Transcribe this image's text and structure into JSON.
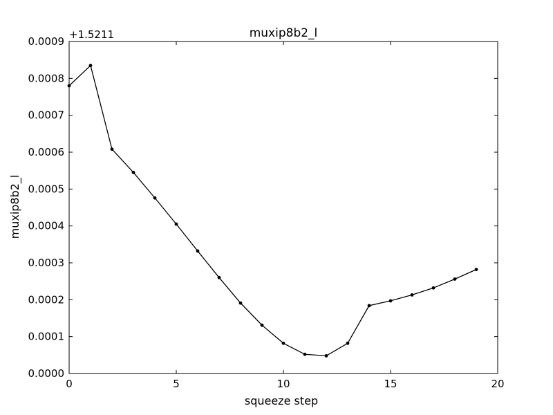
{
  "chart_data": {
    "type": "line",
    "title": "muxip8b2_l",
    "xlabel": "squeeze step",
    "ylabel": "muxip8b2_l",
    "offset_label": "+1.5211",
    "xlim": [
      0,
      20
    ],
    "ylim": [
      0.0,
      0.0009
    ],
    "x_ticks": [
      0,
      5,
      10,
      15,
      20
    ],
    "x_tick_labels": [
      "0",
      "5",
      "10",
      "15",
      "20"
    ],
    "y_ticks": [
      0.0,
      0.0001,
      0.0002,
      0.0003,
      0.0004,
      0.0005,
      0.0006,
      0.0007,
      0.0008,
      0.0009
    ],
    "y_tick_labels": [
      "0.0000",
      "0.0001",
      "0.0002",
      "0.0003",
      "0.0004",
      "0.0005",
      "0.0006",
      "0.0007",
      "0.0008",
      "0.0009"
    ],
    "grid": false,
    "line_color": "#000000",
    "marker": "dot",
    "series": [
      {
        "x": [
          0,
          1,
          2,
          3,
          4,
          5,
          6,
          7,
          8,
          9,
          10,
          11,
          12,
          13,
          14,
          15,
          16,
          17,
          18,
          19
        ],
        "values": [
          0.00078,
          0.000835,
          0.000608,
          0.000545,
          0.000476,
          0.000405,
          0.000332,
          0.00026,
          0.000191,
          0.000131,
          8.2e-05,
          5.2e-05,
          4.8e-05,
          8.2e-05,
          0.000184,
          0.000197,
          0.000213,
          0.000232,
          0.000256,
          0.000282
        ]
      }
    ]
  }
}
